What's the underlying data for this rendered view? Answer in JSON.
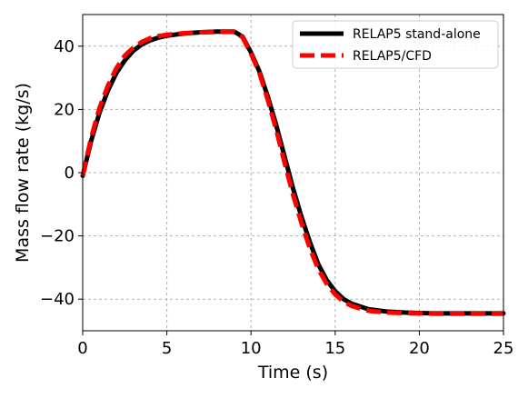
{
  "chart_data": {
    "type": "line",
    "title": "",
    "xlabel": "Time (s)",
    "ylabel": "Mass flow rate (kg/s)",
    "xlim": [
      0,
      25
    ],
    "ylim": [
      -50,
      50
    ],
    "x_ticks": [
      0,
      5,
      10,
      15,
      20,
      25
    ],
    "x_tick_labels": [
      "0",
      "5",
      "10",
      "15",
      "20",
      "25"
    ],
    "y_ticks": [
      -40,
      -20,
      0,
      20,
      40
    ],
    "y_tick_labels": [
      "−40",
      "−20",
      "0",
      "20",
      "40"
    ],
    "grid": true,
    "legend_position": "top-right",
    "series": [
      {
        "name": "RELAP5 stand-alone",
        "color": "#000000",
        "style": "solid",
        "x": [
          0,
          0.5,
          1,
          1.5,
          2,
          2.5,
          3,
          3.5,
          4,
          4.5,
          5,
          6,
          7,
          8,
          8.5,
          9,
          9.5,
          10,
          10.5,
          11,
          11.5,
          12,
          12.5,
          13,
          13.5,
          14,
          14.5,
          15,
          15.5,
          16,
          17,
          18,
          19,
          20,
          21,
          22,
          23,
          24,
          25
        ],
        "y": [
          -1,
          10,
          19,
          26,
          31.5,
          35.5,
          38.5,
          40.5,
          41.8,
          42.7,
          43.3,
          44,
          44.4,
          44.6,
          44.6,
          44.6,
          43,
          38,
          32,
          24,
          15,
          5,
          -5,
          -14,
          -22,
          -29,
          -34,
          -37.5,
          -40,
          -41.5,
          -43.2,
          -43.9,
          -44.2,
          -44.4,
          -44.5,
          -44.5,
          -44.5,
          -44.5,
          -44.5
        ]
      },
      {
        "name": "RELAP5/CFD",
        "color": "#ff0000",
        "style": "dashed",
        "x": [
          0,
          0.5,
          1,
          1.5,
          2,
          2.5,
          3,
          3.5,
          4,
          4.5,
          5,
          6,
          7,
          8,
          8.5,
          9,
          9.5,
          10,
          10.5,
          11,
          11.5,
          12,
          12.5,
          13,
          13.5,
          14,
          14.5,
          15,
          15.5,
          16,
          17,
          18,
          19,
          20,
          21,
          22,
          23,
          24,
          25
        ],
        "y": [
          -1,
          11,
          20.5,
          27.5,
          33,
          37,
          39.5,
          41.3,
          42.5,
          43.2,
          43.6,
          44.1,
          44.4,
          44.5,
          44.5,
          44.5,
          42.8,
          37.6,
          31.5,
          23,
          13.5,
          3,
          -7,
          -16,
          -24,
          -30.5,
          -35.2,
          -38.5,
          -40.8,
          -42.2,
          -43.7,
          -44.2,
          -44.4,
          -44.5,
          -44.6,
          -44.6,
          -44.6,
          -44.6,
          -44.6
        ]
      }
    ]
  }
}
